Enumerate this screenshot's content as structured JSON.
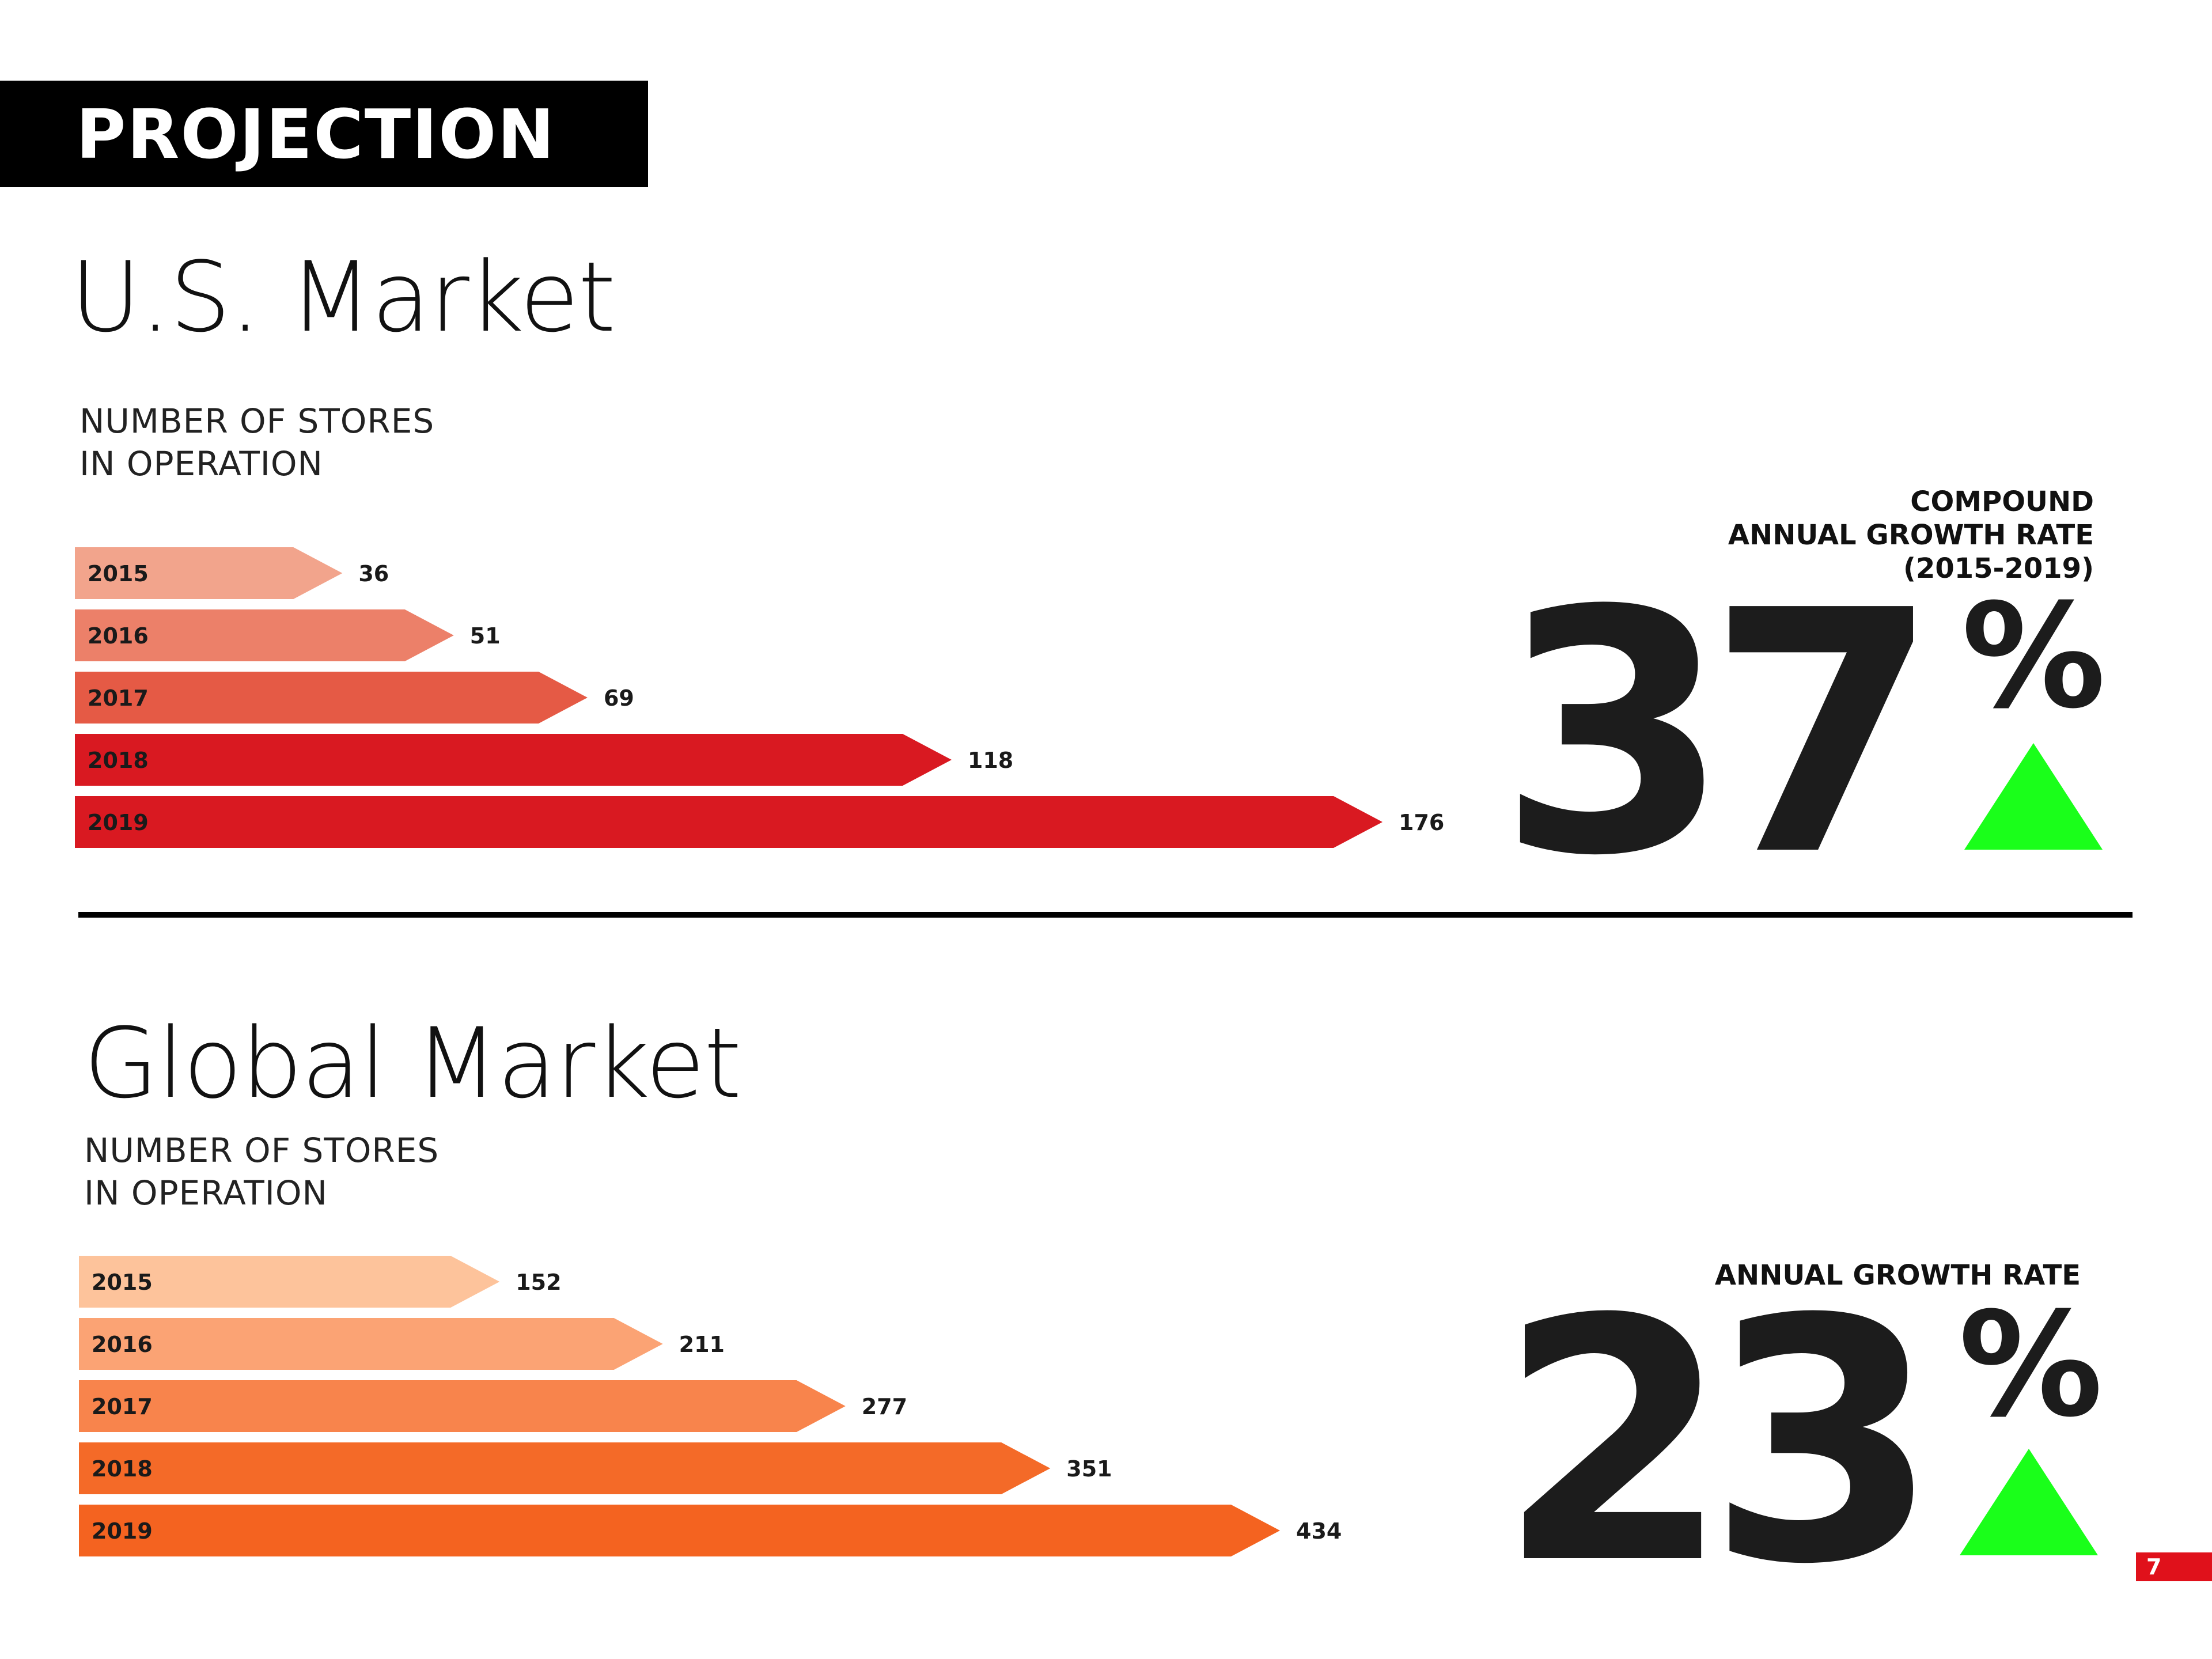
{
  "header": {
    "title": "PROJECTION"
  },
  "us": {
    "title": "U.S. Market",
    "subtitle": "NUMBER OF STORES\nIN OPERATION",
    "cagr_label": "COMPOUND\nANNUAL GROWTH RATE\n(2015-2019)",
    "cagr_number": "37",
    "cagr_symbol": "%",
    "trend_icon": "up-triangle-icon"
  },
  "global": {
    "title": "Global Market",
    "subtitle": "NUMBER OF STORES\nIN OPERATION",
    "cagr_label": "ANNUAL GROWTH RATE",
    "cagr_number": "23",
    "cagr_symbol": "%",
    "trend_icon": "up-triangle-icon"
  },
  "colors": {
    "us_bars": [
      "#f2a48c",
      "#ec8069",
      "#e55a45",
      "#d91921",
      "#d91921"
    ],
    "global_bars": [
      "#fdc39b",
      "#fba374",
      "#f8844c",
      "#f46a28",
      "#f46320"
    ],
    "trend_up": "#1aff1a",
    "page_badge": "#e0111b"
  },
  "chart_data": [
    {
      "type": "bar",
      "orientation": "horizontal",
      "categories": [
        "2015",
        "2016",
        "2017",
        "2018",
        "2019"
      ],
      "values": [
        36,
        51,
        69,
        118,
        176
      ],
      "title": "U.S. Market",
      "subtitle": "NUMBER OF STORES IN OPERATION",
      "xlabel": "",
      "ylabel": "",
      "grid": false
    },
    {
      "type": "bar",
      "orientation": "horizontal",
      "categories": [
        "2015",
        "2016",
        "2017",
        "2018",
        "2019"
      ],
      "values": [
        152,
        211,
        277,
        351,
        434
      ],
      "title": "Global Market",
      "subtitle": "NUMBER OF STORES IN OPERATION",
      "xlabel": "",
      "ylabel": "",
      "grid": false
    }
  ],
  "page": {
    "number": "7"
  }
}
